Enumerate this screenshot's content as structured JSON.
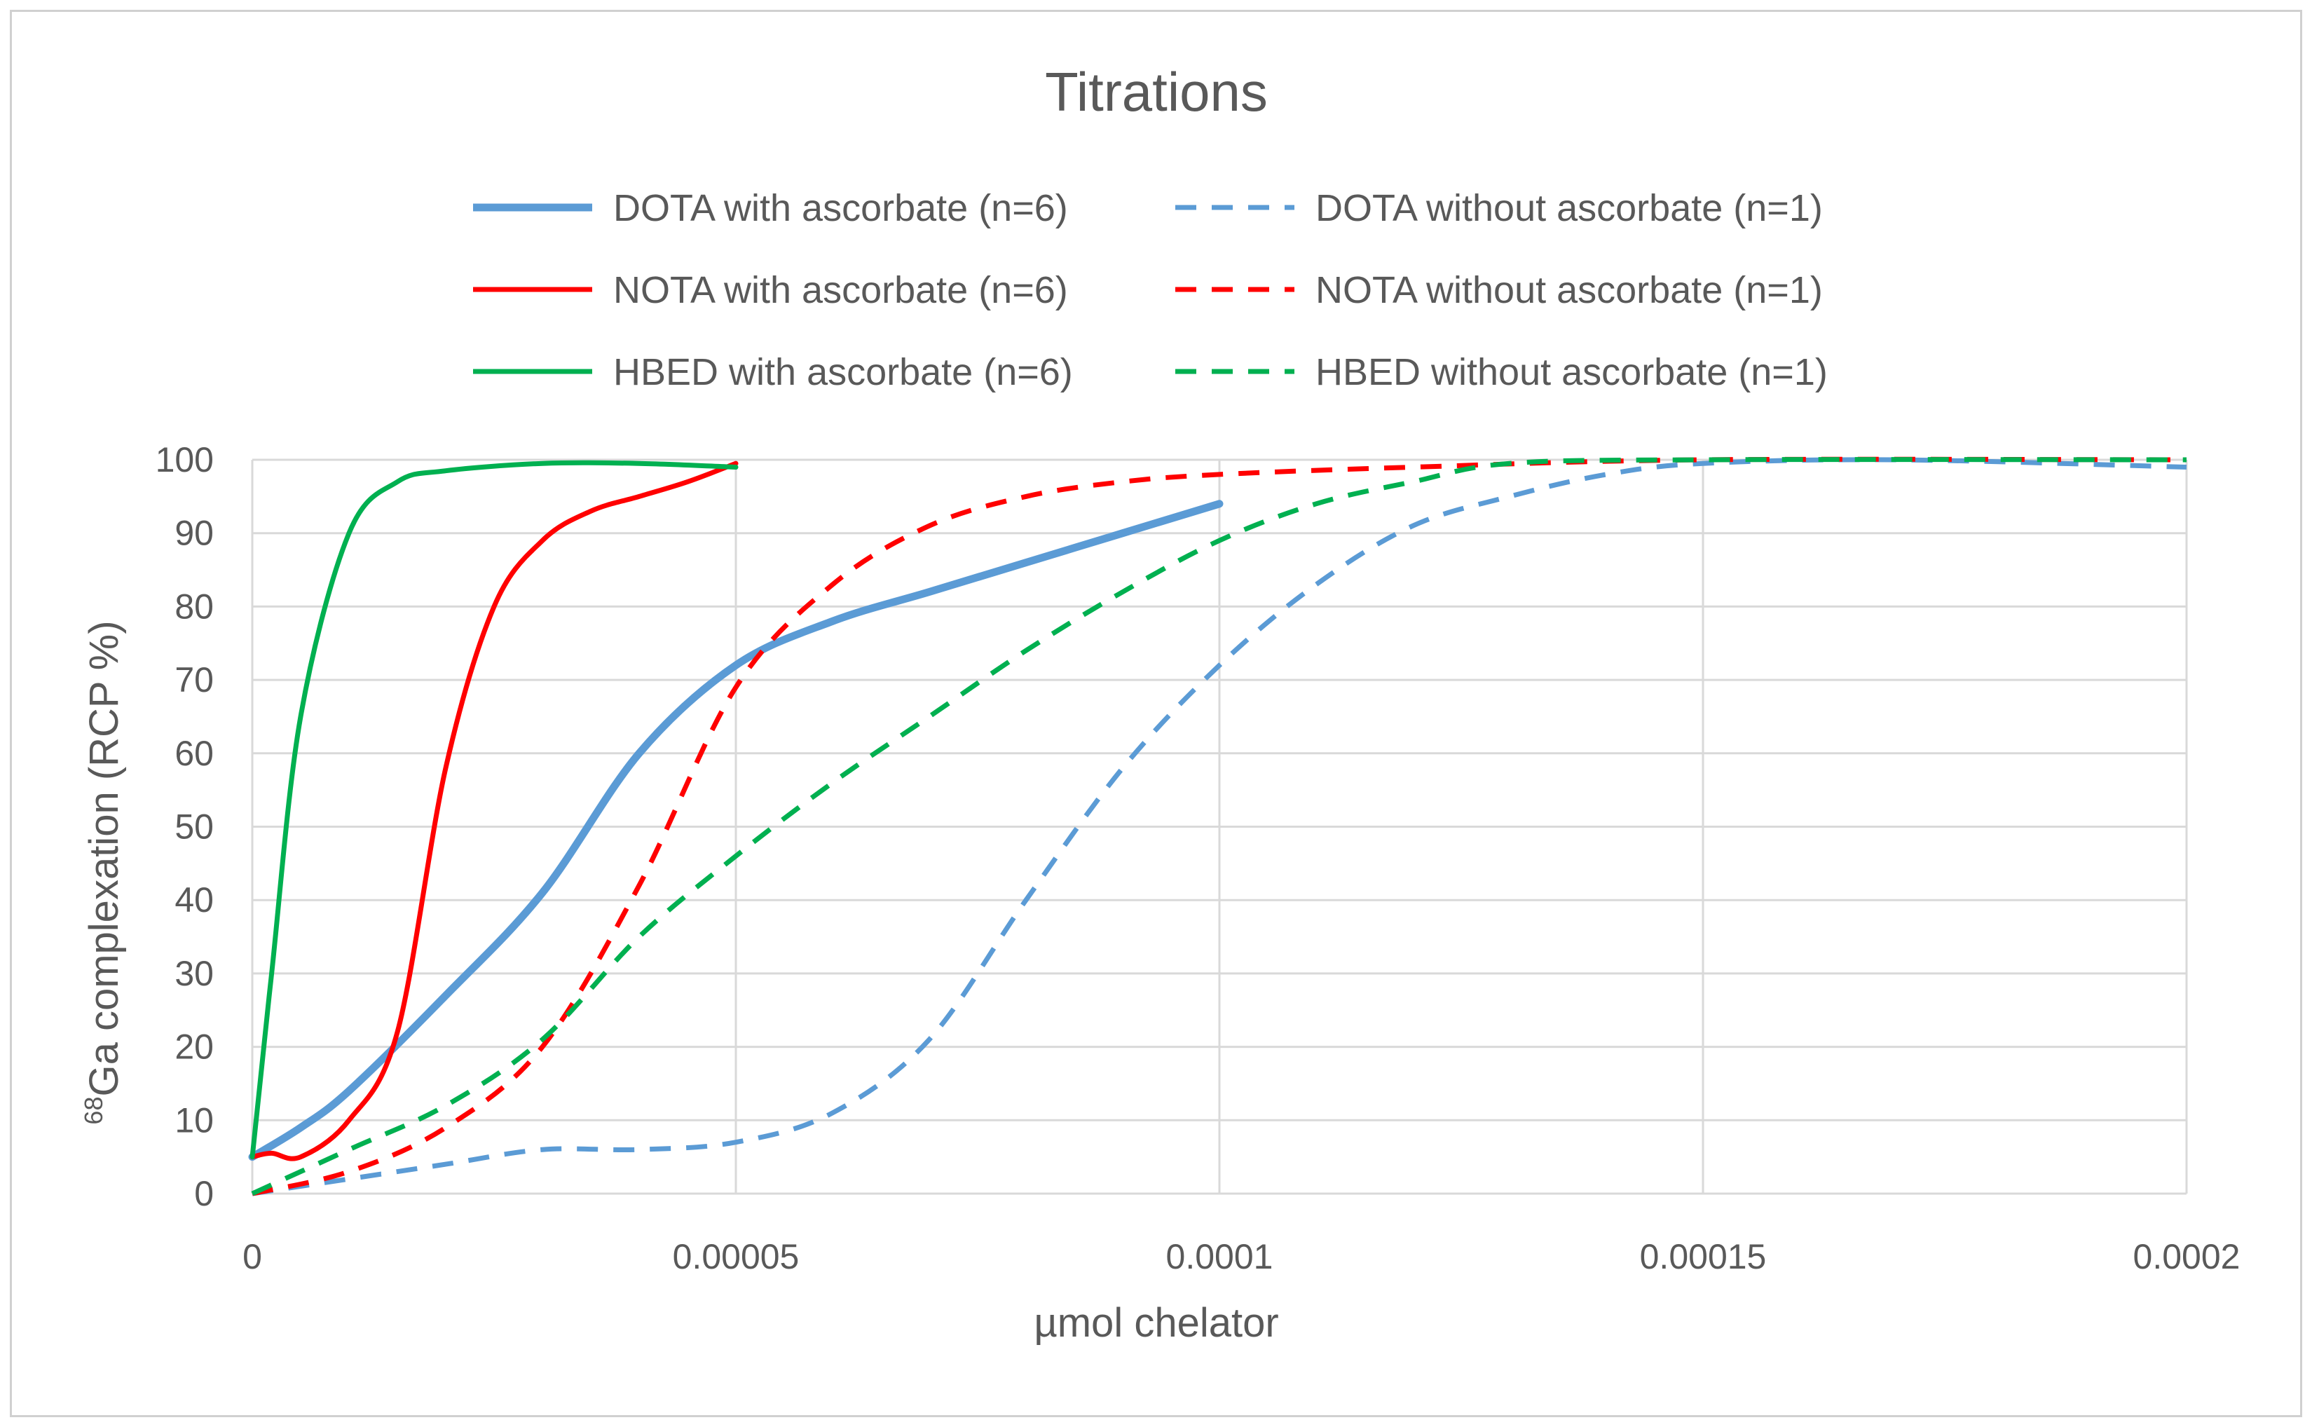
{
  "chart_data": {
    "type": "line",
    "title": "Titrations",
    "xlabel": "µmol chelator",
    "ylabel_sup": "68",
    "ylabel_main": "Ga complexation (RCP %)",
    "xlim": [
      0,
      0.0002
    ],
    "ylim": [
      0,
      100
    ],
    "grid": true,
    "legend_position": "top",
    "x_ticks": [
      {
        "value": 0,
        "label": "0"
      },
      {
        "value": 5e-05,
        "label": "0.00005"
      },
      {
        "value": 0.0001,
        "label": "0.0001"
      },
      {
        "value": 0.00015,
        "label": "0.00015"
      },
      {
        "value": 0.0002,
        "label": "0.0002"
      }
    ],
    "y_ticks": [
      {
        "value": 0,
        "label": "0"
      },
      {
        "value": 10,
        "label": "10"
      },
      {
        "value": 20,
        "label": "20"
      },
      {
        "value": 30,
        "label": "30"
      },
      {
        "value": 40,
        "label": "40"
      },
      {
        "value": 50,
        "label": "50"
      },
      {
        "value": 60,
        "label": "60"
      },
      {
        "value": 70,
        "label": "70"
      },
      {
        "value": 80,
        "label": "80"
      },
      {
        "value": 90,
        "label": "90"
      },
      {
        "value": 100,
        "label": "100"
      }
    ],
    "series": [
      {
        "name": "DOTA with ascorbate (n=6)",
        "color": "#5b9bd5",
        "dashed": false,
        "weight": "bold",
        "points": [
          [
            0,
            5
          ],
          [
            5e-06,
            9
          ],
          [
            1e-05,
            14
          ],
          [
            2e-05,
            27
          ],
          [
            3e-05,
            41
          ],
          [
            4e-05,
            60
          ],
          [
            5e-05,
            72
          ],
          [
            6e-05,
            78
          ],
          [
            7e-05,
            82
          ],
          [
            8e-05,
            86
          ],
          [
            9e-05,
            90
          ],
          [
            0.0001,
            94
          ]
        ]
      },
      {
        "name": "NOTA with ascorbate (n=6)",
        "color": "#ff0000",
        "dashed": false,
        "weight": "normal",
        "points": [
          [
            0,
            5
          ],
          [
            2e-06,
            5.5
          ],
          [
            5e-06,
            5
          ],
          [
            1e-05,
            10
          ],
          [
            1.5e-05,
            22
          ],
          [
            2e-05,
            58
          ],
          [
            2.5e-05,
            80
          ],
          [
            3e-05,
            89
          ],
          [
            3.5e-05,
            93
          ],
          [
            4e-05,
            95
          ],
          [
            4.5e-05,
            97
          ],
          [
            5e-05,
            99.5
          ]
        ]
      },
      {
        "name": "HBED with ascorbate (n=6)",
        "color": "#00b050",
        "dashed": false,
        "weight": "normal",
        "points": [
          [
            0,
            5
          ],
          [
            2e-06,
            30
          ],
          [
            5e-06,
            65
          ],
          [
            1e-05,
            90
          ],
          [
            1.5e-05,
            97
          ],
          [
            2e-05,
            98.5
          ],
          [
            3e-05,
            99.5
          ],
          [
            4e-05,
            99.5
          ],
          [
            5e-05,
            99
          ]
        ]
      },
      {
        "name": "DOTA without ascorbate (n=1)",
        "color": "#5b9bd5",
        "dashed": true,
        "weight": "normal",
        "points": [
          [
            0,
            0
          ],
          [
            1e-05,
            2
          ],
          [
            2e-05,
            4
          ],
          [
            3e-05,
            6
          ],
          [
            4e-05,
            6
          ],
          [
            5e-05,
            7
          ],
          [
            6e-05,
            11
          ],
          [
            7e-05,
            21
          ],
          [
            8e-05,
            40
          ],
          [
            9e-05,
            58
          ],
          [
            0.0001,
            72
          ],
          [
            0.00011,
            83
          ],
          [
            0.00012,
            91
          ],
          [
            0.00013,
            95
          ],
          [
            0.00014,
            98
          ],
          [
            0.00015,
            99.5
          ],
          [
            0.00017,
            100
          ],
          [
            0.0002,
            99
          ]
        ]
      },
      {
        "name": "NOTA without ascorbate (n=1)",
        "color": "#ff0000",
        "dashed": true,
        "weight": "normal",
        "points": [
          [
            0,
            0
          ],
          [
            1e-05,
            3
          ],
          [
            2e-05,
            9
          ],
          [
            3e-05,
            20
          ],
          [
            4e-05,
            42
          ],
          [
            5e-05,
            69
          ],
          [
            6e-05,
            83
          ],
          [
            7e-05,
            91
          ],
          [
            8e-05,
            95
          ],
          [
            9e-05,
            97
          ],
          [
            0.0001,
            98
          ],
          [
            0.00012,
            99
          ],
          [
            0.00015,
            100
          ],
          [
            0.0002,
            100
          ]
        ]
      },
      {
        "name": "HBED without ascorbate (n=1)",
        "color": "#00b050",
        "dashed": true,
        "weight": "normal",
        "points": [
          [
            0,
            0
          ],
          [
            1e-05,
            6
          ],
          [
            2e-05,
            12
          ],
          [
            3e-05,
            21
          ],
          [
            4e-05,
            35
          ],
          [
            5e-05,
            46
          ],
          [
            6e-05,
            56
          ],
          [
            7e-05,
            65
          ],
          [
            8e-05,
            74
          ],
          [
            9e-05,
            82
          ],
          [
            0.0001,
            89
          ],
          [
            0.00011,
            94
          ],
          [
            0.00012,
            97
          ],
          [
            0.00013,
            99.5
          ],
          [
            0.00015,
            100
          ],
          [
            0.0002,
            100
          ]
        ]
      }
    ]
  }
}
